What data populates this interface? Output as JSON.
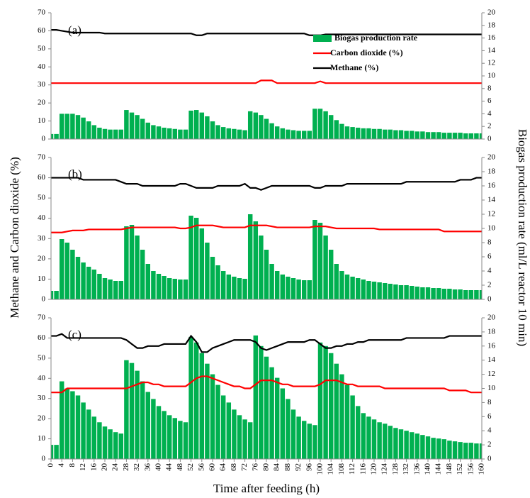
{
  "chart_data": [
    {
      "type": "combo",
      "label": "(a)",
      "legend": "upper right",
      "x": [
        0,
        2,
        4,
        6,
        8,
        10,
        12,
        14,
        16,
        18,
        20,
        22,
        24,
        26,
        28,
        30,
        32,
        34,
        36,
        38,
        40,
        42,
        44,
        46,
        48,
        50,
        52,
        54,
        56,
        58,
        60,
        62,
        64,
        66,
        68,
        70,
        72,
        74,
        76,
        78,
        80,
        82,
        84,
        86,
        88,
        90,
        92,
        94,
        96,
        98,
        100,
        102,
        104,
        106,
        108,
        110,
        112,
        114,
        116,
        118,
        120,
        122,
        124,
        126,
        128,
        130,
        132,
        134,
        136,
        138,
        140,
        142,
        144,
        146,
        148,
        150,
        152,
        154,
        156,
        158,
        160
      ],
      "xlim": [
        0,
        160
      ],
      "ylim": [
        0,
        70
      ],
      "yticks": [
        0,
        10,
        20,
        30,
        40,
        50,
        60,
        70
      ],
      "y2lim": [
        0,
        20
      ],
      "y2ticks": [
        0,
        2,
        4,
        6,
        8,
        10,
        12,
        14,
        16,
        18,
        20
      ],
      "series": [
        {
          "name": "Biogas production rate",
          "type": "bar",
          "axis": "y2",
          "color": "#00b050",
          "values": [
            0.8,
            0.8,
            4.0,
            4.0,
            4.0,
            3.8,
            3.4,
            2.8,
            2.2,
            1.8,
            1.6,
            1.5,
            1.5,
            1.5,
            4.6,
            4.2,
            3.8,
            3.2,
            2.6,
            2.2,
            2.0,
            1.8,
            1.7,
            1.6,
            1.5,
            1.5,
            4.5,
            4.6,
            4.2,
            3.6,
            2.8,
            2.2,
            1.9,
            1.7,
            1.6,
            1.5,
            1.4,
            4.4,
            4.2,
            3.8,
            3.2,
            2.5,
            2.0,
            1.7,
            1.5,
            1.4,
            1.3,
            1.3,
            1.3,
            4.8,
            4.8,
            4.4,
            3.8,
            3.0,
            2.4,
            2.0,
            1.9,
            1.8,
            1.7,
            1.7,
            1.6,
            1.6,
            1.5,
            1.5,
            1.4,
            1.4,
            1.3,
            1.3,
            1.2,
            1.2,
            1.1,
            1.1,
            1.1,
            1.0,
            1.0,
            1.0,
            1.0,
            0.9,
            0.9,
            0.9,
            0.9
          ]
        },
        {
          "name": "Carbon dioxide  (%)",
          "type": "line",
          "color": "#ff0000",
          "values": [
            31,
            31,
            31,
            31,
            31,
            31,
            31,
            31,
            31,
            31,
            31,
            31,
            31,
            31,
            31,
            31,
            31,
            31,
            31,
            31,
            31,
            31,
            31,
            31,
            31,
            31,
            31,
            31,
            31,
            31,
            31,
            31,
            31,
            31,
            31,
            31,
            31,
            31,
            31,
            32.5,
            32.5,
            32.5,
            31,
            31,
            31,
            31,
            31,
            31,
            31,
            31,
            32,
            31,
            31,
            31,
            31,
            31,
            31,
            31,
            31,
            31,
            31,
            31,
            31,
            31,
            31,
            31,
            31,
            31,
            31,
            31,
            31,
            31,
            31,
            31,
            31,
            31,
            31,
            31,
            31,
            31,
            31
          ]
        },
        {
          "name": "Methane   (%)",
          "type": "line",
          "color": "#000000",
          "values": [
            60.5,
            60.5,
            60,
            59.5,
            59,
            59,
            59,
            59,
            59,
            59,
            58.5,
            58.5,
            58.5,
            58.5,
            58.5,
            58.5,
            58.5,
            58.5,
            58.5,
            58.5,
            58.5,
            58.5,
            58.5,
            58.5,
            58.5,
            58.5,
            58.5,
            57.5,
            57.5,
            58.5,
            58.5,
            58.5,
            58.5,
            58.5,
            58.5,
            58.5,
            58.5,
            58.5,
            58.5,
            58.5,
            58.5,
            58.5,
            58.5,
            58.5,
            58.5,
            58.5,
            58.5,
            58.5,
            57.5,
            57.5,
            57.5,
            58,
            58,
            58,
            58,
            58,
            58,
            58,
            58,
            58,
            58,
            58,
            58,
            58,
            58,
            58,
            58,
            58,
            58,
            58,
            58,
            58,
            58,
            58,
            58,
            58,
            58,
            58,
            58,
            58,
            58
          ]
        }
      ]
    },
    {
      "type": "combo",
      "label": "(b)",
      "ylabel": "Methane and Carbon dioxide  (%)",
      "y2label": "Biogas production rate  (ml/L reactor 10 min)",
      "x": [
        0,
        2,
        4,
        6,
        8,
        10,
        12,
        14,
        16,
        18,
        20,
        22,
        24,
        26,
        28,
        30,
        32,
        34,
        36,
        38,
        40,
        42,
        44,
        46,
        48,
        50,
        52,
        54,
        56,
        58,
        60,
        62,
        64,
        66,
        68,
        70,
        72,
        74,
        76,
        78,
        80,
        82,
        84,
        86,
        88,
        90,
        92,
        94,
        96,
        98,
        100,
        102,
        104,
        106,
        108,
        110,
        112,
        114,
        116,
        118,
        120,
        122,
        124,
        126,
        128,
        130,
        132,
        134,
        136,
        138,
        140,
        142,
        144,
        146,
        148,
        150,
        152,
        154,
        156,
        158,
        160
      ],
      "xlim": [
        0,
        160
      ],
      "ylim": [
        0,
        70
      ],
      "yticks": [
        0,
        10,
        20,
        30,
        40,
        50,
        60,
        70
      ],
      "y2lim": [
        0,
        20
      ],
      "y2ticks": [
        0,
        2,
        4,
        6,
        8,
        10,
        12,
        14,
        16,
        18,
        20
      ],
      "series": [
        {
          "type": "bar",
          "axis": "y2",
          "color": "#00b050",
          "values": [
            1.2,
            1.2,
            8.5,
            8.0,
            7.0,
            6.0,
            5.2,
            4.6,
            4.2,
            3.6,
            3.0,
            2.8,
            2.6,
            2.6,
            10.3,
            10.5,
            9.0,
            7.0,
            5.0,
            4.0,
            3.6,
            3.3,
            3.0,
            2.9,
            2.8,
            2.8,
            11.8,
            11.5,
            10.0,
            8.0,
            6.0,
            4.8,
            4.0,
            3.5,
            3.2,
            3.0,
            2.9,
            12.0,
            11.0,
            9.0,
            7.0,
            5.0,
            4.0,
            3.5,
            3.2,
            3.0,
            2.8,
            2.7,
            2.7,
            11.2,
            10.8,
            9.0,
            7.0,
            5.0,
            4.0,
            3.5,
            3.2,
            3.0,
            2.8,
            2.6,
            2.5,
            2.4,
            2.3,
            2.2,
            2.1,
            2.0,
            2.0,
            1.9,
            1.8,
            1.7,
            1.7,
            1.6,
            1.6,
            1.5,
            1.5,
            1.4,
            1.4,
            1.3,
            1.3,
            1.3,
            1.3
          ]
        },
        {
          "type": "line",
          "color": "#ff0000",
          "values": [
            33,
            33,
            33,
            33.5,
            34,
            34,
            34,
            34.5,
            34.5,
            34.5,
            34.5,
            34.5,
            34.5,
            34.5,
            35,
            35.5,
            35.5,
            35.5,
            35.5,
            35.5,
            35.5,
            35.5,
            35.5,
            35.5,
            35,
            35,
            35.5,
            36.5,
            36.5,
            36.5,
            36.5,
            36,
            35.5,
            35.5,
            35.5,
            35.5,
            35.5,
            36.5,
            36.5,
            36.5,
            36.5,
            36,
            35.5,
            35.5,
            35.5,
            35.5,
            35.5,
            35.5,
            35.5,
            36,
            36,
            36,
            35.5,
            35,
            35,
            35,
            35,
            35,
            35,
            35,
            35,
            34.5,
            34.5,
            34.5,
            34.5,
            34.5,
            34.5,
            34.5,
            34.5,
            34.5,
            34.5,
            34.5,
            34.5,
            33.5,
            33.5,
            33.5,
            33.5,
            33.5,
            33.5,
            33.5,
            33.5
          ]
        },
        {
          "type": "line",
          "color": "#000000",
          "values": [
            60,
            60,
            60,
            60,
            60,
            60,
            59,
            59,
            59,
            59,
            59,
            59,
            59,
            58,
            57,
            57,
            57,
            56,
            56,
            56,
            56,
            56,
            56,
            56,
            57,
            57,
            56,
            55,
            55,
            55,
            55,
            56,
            56,
            56,
            56,
            56,
            57,
            55,
            55,
            54,
            55,
            56,
            56,
            56,
            56,
            56,
            56,
            56,
            56,
            55,
            55,
            56,
            56,
            56,
            56,
            57,
            57,
            57,
            57,
            57,
            57,
            57,
            57,
            57,
            57,
            57,
            58,
            58,
            58,
            58,
            58,
            58,
            58,
            58,
            58,
            58,
            59,
            59,
            59,
            60,
            60
          ]
        }
      ]
    },
    {
      "type": "combo",
      "label": "(c)",
      "xlabel": "Time after feeding (h)",
      "x": [
        0,
        2,
        4,
        6,
        8,
        10,
        12,
        14,
        16,
        18,
        20,
        22,
        24,
        26,
        28,
        30,
        32,
        34,
        36,
        38,
        40,
        42,
        44,
        46,
        48,
        50,
        52,
        54,
        56,
        58,
        60,
        62,
        64,
        66,
        68,
        70,
        72,
        74,
        76,
        78,
        80,
        82,
        84,
        86,
        88,
        90,
        92,
        94,
        96,
        98,
        100,
        102,
        104,
        106,
        108,
        110,
        112,
        114,
        116,
        118,
        120,
        122,
        124,
        126,
        128,
        130,
        132,
        134,
        136,
        138,
        140,
        142,
        144,
        146,
        148,
        150,
        152,
        154,
        156,
        158,
        160
      ],
      "xlim": [
        0,
        160
      ],
      "xticks": [
        0,
        4,
        8,
        12,
        16,
        20,
        24,
        28,
        32,
        36,
        40,
        44,
        48,
        52,
        56,
        60,
        64,
        68,
        72,
        76,
        80,
        84,
        88,
        92,
        96,
        100,
        104,
        108,
        112,
        116,
        120,
        124,
        128,
        132,
        136,
        140,
        144,
        148,
        152,
        156,
        160
      ],
      "ylim": [
        0,
        70
      ],
      "yticks": [
        0,
        10,
        20,
        30,
        40,
        50,
        60,
        70
      ],
      "y2lim": [
        0,
        20
      ],
      "y2ticks": [
        0,
        2,
        4,
        6,
        8,
        10,
        12,
        14,
        16,
        18,
        20
      ],
      "series": [
        {
          "type": "bar",
          "axis": "y2",
          "color": "#00b050",
          "values": [
            2.0,
            2.0,
            11.0,
            10.0,
            9.6,
            9.0,
            8.0,
            7.0,
            6.0,
            5.2,
            4.6,
            4.2,
            3.8,
            3.6,
            14.0,
            13.6,
            12.5,
            11.0,
            9.5,
            8.5,
            7.5,
            6.8,
            6.2,
            5.8,
            5.4,
            5.2,
            17.3,
            16.5,
            15.0,
            13.5,
            12.0,
            10.5,
            9.0,
            8.0,
            7.0,
            6.2,
            5.6,
            5.2,
            17.5,
            16.0,
            14.5,
            13.0,
            11.5,
            10.0,
            8.5,
            7.0,
            6.0,
            5.4,
            5.0,
            4.8,
            16.5,
            16.0,
            15.0,
            13.5,
            12.0,
            10.5,
            9.0,
            7.5,
            6.5,
            6.0,
            5.6,
            5.2,
            5.0,
            4.7,
            4.4,
            4.2,
            4.0,
            3.8,
            3.6,
            3.4,
            3.2,
            3.0,
            2.9,
            2.8,
            2.6,
            2.5,
            2.4,
            2.3,
            2.3,
            2.2,
            2.2
          ]
        },
        {
          "type": "line",
          "color": "#ff0000",
          "values": [
            33,
            33,
            33,
            35,
            35,
            35,
            35,
            35,
            35,
            35,
            35,
            35,
            35,
            35,
            35,
            36,
            37,
            38,
            38,
            37,
            37,
            36,
            36,
            36,
            36,
            36,
            38,
            40,
            41,
            41,
            40,
            39,
            38,
            37,
            36,
            36,
            35,
            35,
            37,
            39,
            39,
            39,
            38,
            37,
            37,
            36,
            36,
            36,
            36,
            36,
            37,
            39,
            39,
            39,
            38,
            37,
            37,
            36,
            36,
            36,
            36,
            36,
            35,
            35,
            35,
            35,
            35,
            35,
            35,
            35,
            35,
            35,
            35,
            35,
            34,
            34,
            34,
            34,
            33,
            33,
            33
          ]
        },
        {
          "type": "line",
          "color": "#000000",
          "values": [
            61,
            61,
            62,
            60,
            60,
            60,
            60,
            60,
            60,
            60,
            60,
            60,
            60,
            60,
            59,
            57,
            55,
            55,
            56,
            56,
            56,
            57,
            57,
            57,
            57,
            57,
            61,
            58,
            53,
            53,
            55,
            56,
            57,
            58,
            59,
            59,
            59,
            59,
            58,
            55,
            54,
            55,
            56,
            57,
            58,
            58,
            58,
            58,
            59,
            59,
            57,
            55,
            55,
            56,
            56,
            57,
            57,
            58,
            58,
            59,
            59,
            59,
            59,
            59,
            59,
            59,
            60,
            60,
            60,
            60,
            60,
            60,
            60,
            60,
            61,
            61,
            61,
            61,
            61,
            61,
            61
          ]
        }
      ]
    }
  ]
}
